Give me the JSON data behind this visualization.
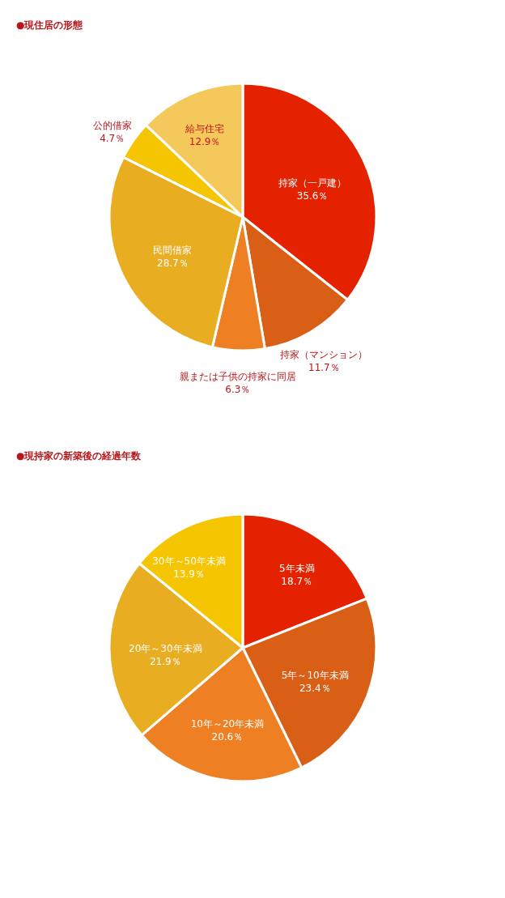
{
  "chart_data": [
    {
      "type": "pie",
      "title": "●現住居の形態",
      "categories": [
        "持家（一戸建）",
        "持家（マンション）",
        "親または子供の持家に同居",
        "民間借家",
        "公的借家",
        "給与住宅"
      ],
      "values": [
        35.6,
        11.7,
        6.3,
        28.7,
        4.7,
        12.9
      ],
      "colors": [
        "#e52200",
        "#d95f17",
        "#ee7f22",
        "#e9ad22",
        "#f4c500",
        "#f4c85a"
      ],
      "value_labels": [
        "35.6％",
        "11.7％",
        "6.3％",
        "28.7％",
        "4.7％",
        "12.9％"
      ]
    },
    {
      "type": "pie",
      "title": "●現持家の新築後の経過年数",
      "categories": [
        "5年未満",
        "5年～10年未満",
        "10年～20年未満",
        "20年～30年未満",
        "30年～50年未満"
      ],
      "values": [
        18.7,
        23.4,
        20.6,
        21.9,
        13.9
      ],
      "colors": [
        "#e52200",
        "#d95f17",
        "#ee7f22",
        "#e9ad22",
        "#f4c500"
      ],
      "value_labels": [
        "18.7％",
        "23.4％",
        "20.6％",
        "21.9％",
        "13.9％"
      ]
    }
  ]
}
